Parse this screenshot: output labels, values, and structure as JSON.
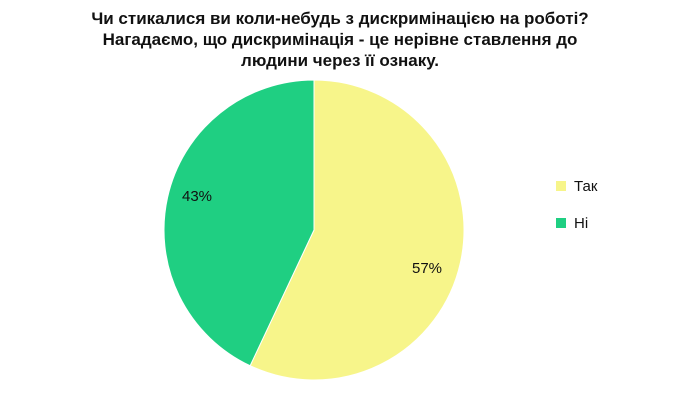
{
  "chart_data": {
    "type": "pie",
    "title_lines": [
      "Чи стикалися ви коли-небудь з дискримінацією на роботі?",
      "Нагадаємо, що дискримінація - це нерівне ставлення до",
      "людини через її ознаку."
    ],
    "categories": [
      "Так",
      "Ні"
    ],
    "values": [
      57,
      43
    ],
    "labels": [
      "57%",
      "43%"
    ],
    "colors": [
      "#f7f58a",
      "#1fcf82"
    ],
    "legend_position": "right"
  }
}
